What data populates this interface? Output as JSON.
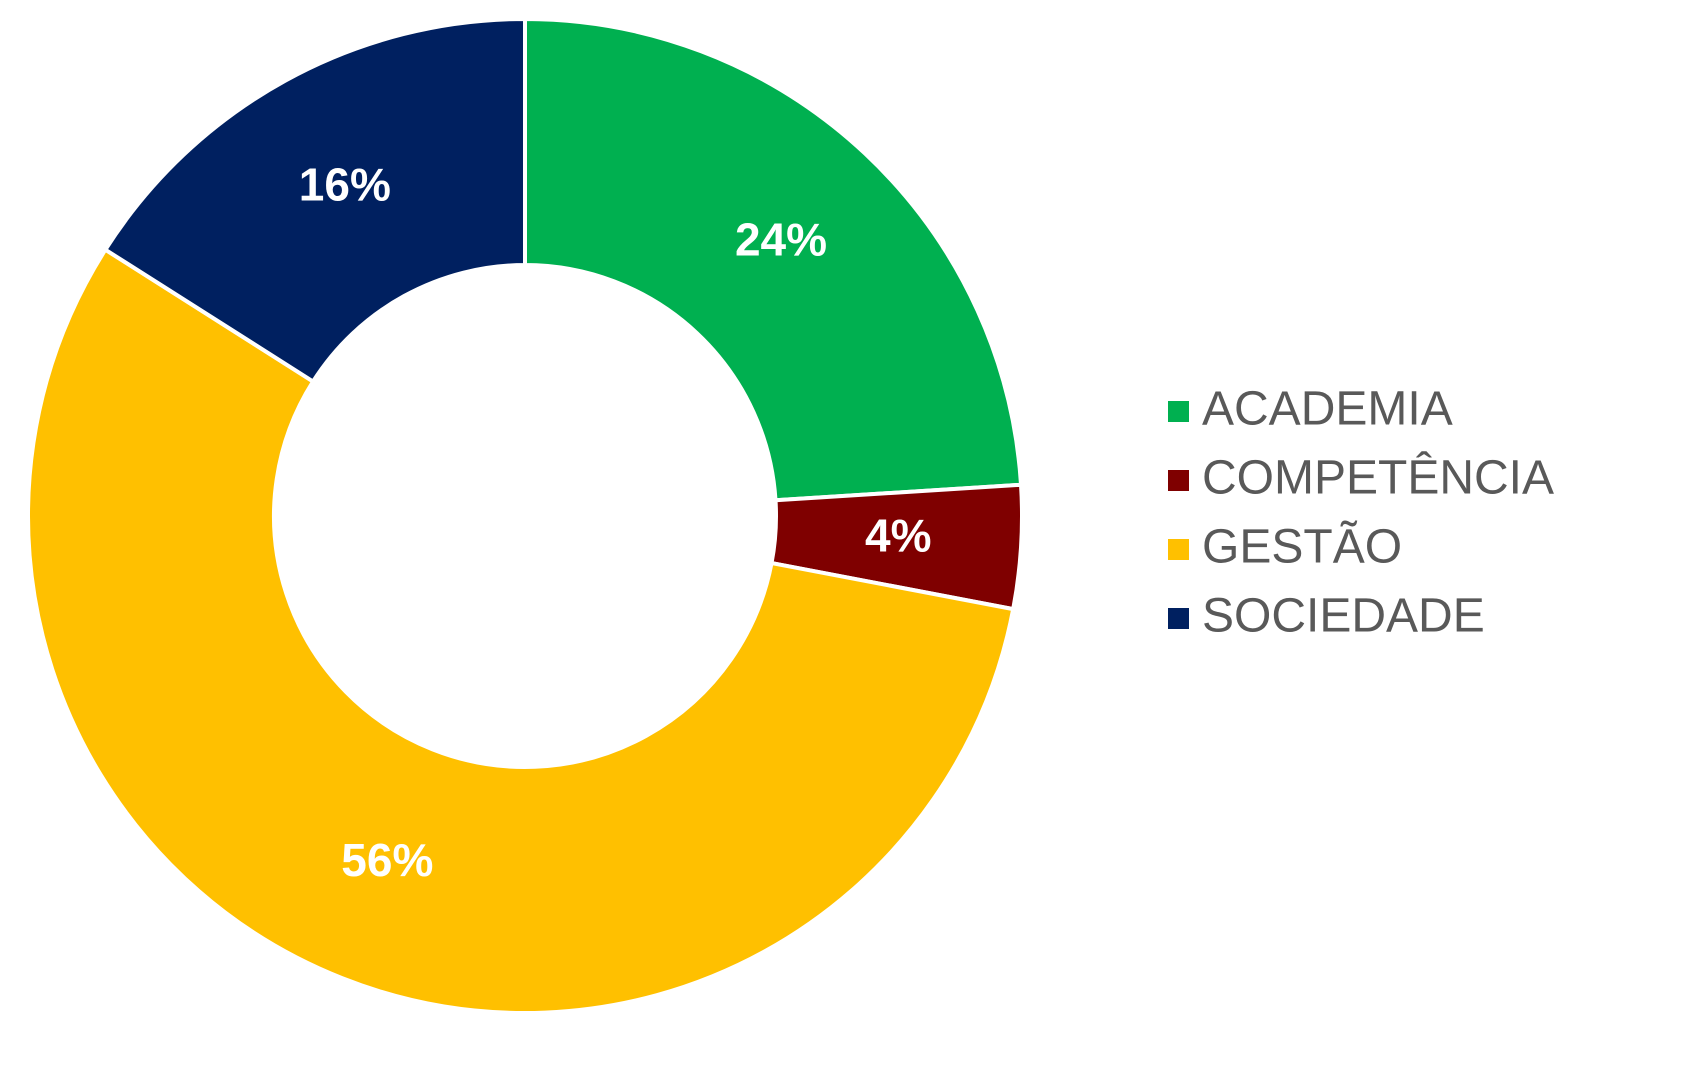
{
  "chart_data": {
    "type": "donut",
    "categories": [
      "ACADEMIA",
      "COMPETÊNCIA",
      "GESTÃO",
      "SOCIEDADE"
    ],
    "values": [
      24,
      4,
      56,
      16
    ],
    "value_labels": [
      "24%",
      "4%",
      "56%",
      "16%"
    ],
    "colors": [
      "#00b050",
      "#7f0000",
      "#ffc000",
      "#002060"
    ],
    "legend": "right"
  }
}
